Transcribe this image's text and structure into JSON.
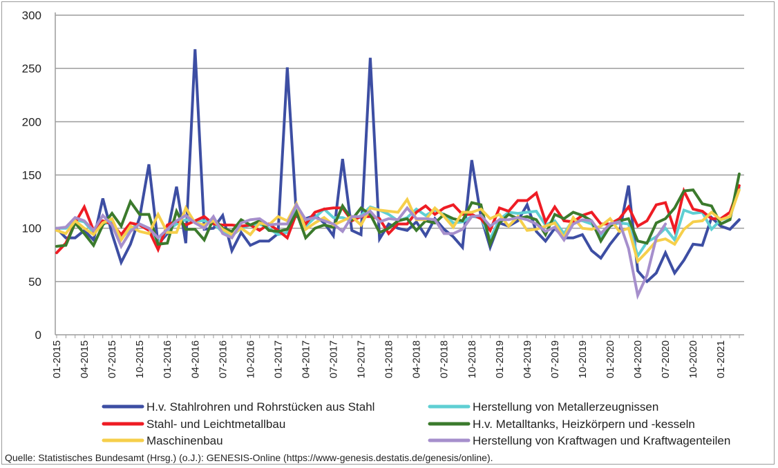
{
  "chart_data": {
    "type": "line",
    "title": "",
    "xlabel": "",
    "ylabel": "",
    "ylim": [
      0,
      300
    ],
    "yticks": [
      0,
      50,
      100,
      150,
      200,
      250,
      300
    ],
    "grid": true,
    "legend_position": "bottom",
    "x_start": "01-2015",
    "x_end": "03-2021",
    "x_frequency": "monthly",
    "xtick_labels": [
      "01-2015",
      "04-2015",
      "07-2015",
      "10-2015",
      "01-2016",
      "04-2016",
      "07-2016",
      "10-2016",
      "01-2017",
      "04-2017",
      "07-2017",
      "10-2017",
      "01-2018",
      "04-2018",
      "07-2018",
      "10-2018",
      "01-2019",
      "04-2019",
      "07-2019",
      "10-2019",
      "01-2020",
      "04-2020",
      "07-2020",
      "10-2020",
      "01-2021"
    ],
    "series": [
      {
        "name": "H.v. Stahlrohren und Rohrstücken aus Stahl",
        "color": "#3d4ea3",
        "values": [
          100,
          91,
          91,
          98,
          89,
          128,
          95,
          68,
          85,
          110,
          160,
          85,
          95,
          139,
          86,
          268,
          99,
          100,
          112,
          79,
          96,
          84,
          88,
          88,
          95,
          251,
          111,
          109,
          112,
          105,
          93,
          165,
          98,
          94,
          260,
          90,
          104,
          100,
          98,
          106,
          93,
          109,
          99,
          92,
          82,
          164,
          111,
          82,
          105,
          102,
          107,
          122,
          97,
          88,
          100,
          91,
          91,
          94,
          79,
          72,
          85,
          96,
          140,
          60,
          50,
          58,
          77,
          58,
          70,
          85,
          84,
          110,
          102,
          99,
          108
        ]
      },
      {
        "name": "Herstellung von Metallerzeugnissen",
        "color": "#5fcfd3",
        "values": [
          100,
          100,
          108,
          106,
          96,
          104,
          106,
          90,
          100,
          104,
          100,
          86,
          98,
          104,
          108,
          107,
          107,
          105,
          96,
          93,
          100,
          103,
          104,
          100,
          94,
          96,
          118,
          102,
          110,
          118,
          110,
          110,
          107,
          112,
          120,
          117,
          113,
          107,
          110,
          118,
          112,
          117,
          113,
          105,
          106,
          111,
          110,
          90,
          108,
          115,
          114,
          115,
          116,
          103,
          107,
          95,
          108,
          107,
          104,
          92,
          103,
          105,
          104,
          74,
          87,
          92,
          100,
          89,
          117,
          114,
          115,
          99,
          108,
          110,
          138
        ]
      },
      {
        "name": "Stahl- und Leichtmetallbau",
        "color": "#ee1c24",
        "values": [
          77,
          86,
          105,
          120,
          98,
          107,
          104,
          94,
          105,
          103,
          98,
          80,
          103,
          107,
          103,
          107,
          111,
          104,
          103,
          103,
          102,
          103,
          98,
          104,
          98,
          91,
          114,
          104,
          115,
          118,
          119,
          119,
          107,
          111,
          111,
          109,
          95,
          104,
          104,
          115,
          121,
          113,
          119,
          122,
          113,
          113,
          109,
          98,
          119,
          116,
          126,
          126,
          133,
          106,
          120,
          107,
          106,
          112,
          115,
          104,
          104,
          109,
          120,
          102,
          107,
          122,
          124,
          98,
          135,
          118,
          116,
          109,
          109,
          115,
          140
        ]
      },
      {
        "name": "H.v. Metalltanks, Heizkörpern und -kesseln",
        "color": "#3b7a2c",
        "values": [
          83,
          84,
          105,
          95,
          84,
          103,
          114,
          102,
          125,
          113,
          113,
          85,
          86,
          116,
          99,
          99,
          89,
          109,
          100,
          97,
          108,
          103,
          107,
          98,
          97,
          99,
          115,
          91,
          100,
          103,
          101,
          121,
          108,
          119,
          113,
          96,
          100,
          107,
          109,
          98,
          107,
          105,
          113,
          109,
          107,
          124,
          122,
          85,
          105,
          113,
          109,
          111,
          108,
          94,
          113,
          109,
          115,
          112,
          107,
          88,
          102,
          107,
          109,
          88,
          86,
          105,
          109,
          119,
          135,
          136,
          123,
          121,
          104,
          108,
          151
        ]
      },
      {
        "name": "Maschinenbau",
        "color": "#f6cf4b",
        "values": [
          98,
          95,
          107,
          100,
          94,
          105,
          109,
          89,
          102,
          97,
          95,
          113,
          96,
          96,
          119,
          105,
          103,
          107,
          99,
          94,
          100,
          94,
          105,
          103,
          111,
          107,
          123,
          99,
          105,
          110,
          103,
          107,
          111,
          103,
          119,
          117,
          116,
          115,
          127,
          108,
          108,
          119,
          111,
          101,
          115,
          115,
          118,
          109,
          113,
          102,
          111,
          98,
          99,
          102,
          105,
          91,
          110,
          100,
          99,
          102,
          109,
          97,
          100,
          69,
          78,
          88,
          90,
          85,
          99,
          106,
          107,
          115,
          108,
          111,
          136
        ]
      },
      {
        "name": "Herstellung von Kraftwagen und Kraftwagenteilen",
        "color": "#a68fcc",
        "values": [
          100,
          101,
          110,
          107,
          98,
          112,
          103,
          83,
          97,
          104,
          100,
          91,
          99,
          107,
          112,
          105,
          100,
          111,
          95,
          91,
          105,
          108,
          109,
          103,
          104,
          104,
          122,
          108,
          110,
          107,
          104,
          97,
          111,
          111,
          116,
          106,
          109,
          108,
          119,
          109,
          109,
          108,
          95,
          95,
          99,
          111,
          112,
          102,
          108,
          108,
          110,
          108,
          104,
          97,
          101,
          89,
          104,
          108,
          107,
          95,
          104,
          106,
          81,
          37,
          56,
          91,
          104,
          null,
          null,
          null,
          null,
          null,
          null,
          null,
          null
        ]
      }
    ],
    "legend_order": [
      0,
      1,
      2,
      3,
      4,
      5
    ]
  },
  "source": "Quelle: Statistisches Bundesamt (Hrsg.) (o.J.): GENESIS-Online (https://www-genesis.destatis.de/genesis/online)."
}
